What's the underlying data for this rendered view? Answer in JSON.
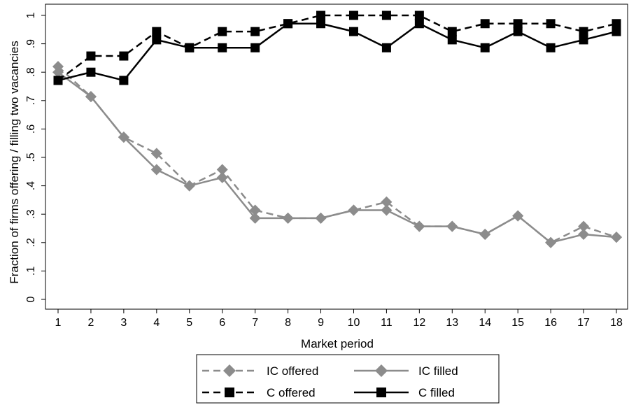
{
  "chart_data": {
    "type": "line",
    "xlabel": "Market period",
    "ylabel": "Fraction of firms offering / filling two vacancies",
    "x": [
      1,
      2,
      3,
      4,
      5,
      6,
      7,
      8,
      9,
      10,
      11,
      12,
      13,
      14,
      15,
      16,
      17,
      18
    ],
    "x_ticks": [
      "1",
      "2",
      "3",
      "4",
      "5",
      "6",
      "7",
      "8",
      "9",
      "10",
      "11",
      "12",
      "13",
      "14",
      "15",
      "16",
      "17",
      "18"
    ],
    "ylim": [
      0,
      1
    ],
    "y_ticks": [
      {
        "value": 0,
        "label": "0"
      },
      {
        "value": 0.1,
        "label": ".1"
      },
      {
        "value": 0.2,
        "label": ".2"
      },
      {
        "value": 0.3,
        "label": ".3"
      },
      {
        "value": 0.4,
        "label": ".4"
      },
      {
        "value": 0.5,
        "label": ".5"
      },
      {
        "value": 0.6,
        "label": ".6"
      },
      {
        "value": 0.7,
        "label": ".7"
      },
      {
        "value": 0.8,
        "label": ".8"
      },
      {
        "value": 0.9,
        "label": ".9"
      },
      {
        "value": 1,
        "label": "1"
      }
    ],
    "grid": false,
    "legend_position": "bottom",
    "series": [
      {
        "name": "IC offered",
        "color": "#8c8c8c",
        "dashed": true,
        "marker": "diamond",
        "values": [
          0.82,
          0.714,
          0.571,
          0.514,
          0.4,
          0.457,
          0.314,
          0.286,
          0.286,
          0.314,
          0.343,
          0.257,
          0.257,
          0.229,
          0.294,
          0.2,
          0.257,
          0.219
        ]
      },
      {
        "name": "IC filled",
        "color": "#8c8c8c",
        "dashed": false,
        "marker": "diamond",
        "values": [
          0.8,
          0.714,
          0.571,
          0.457,
          0.4,
          0.429,
          0.286,
          0.286,
          0.286,
          0.314,
          0.314,
          0.257,
          0.257,
          0.229,
          0.294,
          0.2,
          0.229,
          0.219
        ]
      },
      {
        "name": "C offered",
        "color": "#000000",
        "dashed": true,
        "marker": "square",
        "values": [
          0.771,
          0.857,
          0.857,
          0.943,
          0.886,
          0.943,
          0.943,
          0.971,
          1.0,
          1.0,
          1.0,
          1.0,
          0.943,
          0.971,
          0.971,
          0.971,
          0.943,
          0.971
        ]
      },
      {
        "name": "C filled",
        "color": "#000000",
        "dashed": false,
        "marker": "square",
        "values": [
          0.771,
          0.8,
          0.771,
          0.914,
          0.886,
          0.886,
          0.886,
          0.971,
          0.971,
          0.943,
          0.886,
          0.971,
          0.914,
          0.886,
          0.943,
          0.886,
          0.914,
          0.943
        ]
      }
    ]
  }
}
